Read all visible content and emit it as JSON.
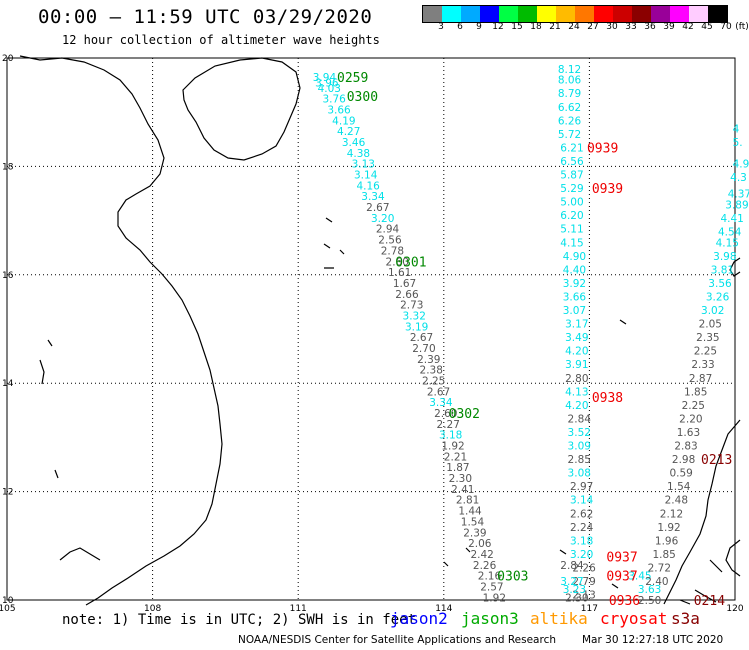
{
  "title": "00:00 – 11:59 UTC 03/29/2020",
  "subtitle": "12 hour collection of altimeter wave heights",
  "legend": {
    "unit": "(ft)",
    "labels": [
      "3",
      "6",
      "9",
      "12",
      "15",
      "18",
      "21",
      "24",
      "27",
      "30",
      "33",
      "36",
      "39",
      "42",
      "45",
      "70"
    ],
    "colors": [
      "#7f7f7f",
      "#00ffff",
      "#00aaff",
      "#0000ff",
      "#00ff44",
      "#00bb00",
      "#ffff00",
      "#ffbb00",
      "#ff7700",
      "#ff0000",
      "#cc0000",
      "#8b0000",
      "#990099",
      "#ff00ff",
      "#ffccff",
      "#000000"
    ]
  },
  "axes": {
    "lon_labels": [
      "105",
      "108",
      "111",
      "114",
      "117",
      "120"
    ],
    "lat_labels": [
      "20",
      "18",
      "16",
      "14",
      "12",
      "10"
    ]
  },
  "note": "note: 1) Time is in UTC; 2) SWH is in feet",
  "satellites": [
    {
      "name": "jason2",
      "color": "#0000ff"
    },
    {
      "name": "jason3",
      "color": "#00aa00"
    },
    {
      "name": "altika",
      "color": "#ff9900"
    },
    {
      "name": "cryosat",
      "color": "#ff0000"
    },
    {
      "name": "s3a",
      "color": "#880000"
    }
  ],
  "footer": "NOAA/NESDIS Center for Satellite Applications and Research",
  "footer_date": "Mar 30 12:27:18 UTC 2020",
  "colors": {
    "cyan": "#00e0e8",
    "gray": "#555555",
    "green": "#008800",
    "red": "#ee0000",
    "darkred": "#880000"
  },
  "tracks": [
    {
      "id": "t1",
      "time": "0259",
      "time_color": "green",
      "points": [
        {
          "lon": 111.3,
          "lat": 19.65,
          "v": "3.94",
          "c": "cyan"
        },
        {
          "lon": 111.35,
          "lat": 19.55,
          "v": "3.96",
          "c": "cyan"
        },
        {
          "lon": 111.4,
          "lat": 19.45,
          "v": "4.03",
          "c": "cyan"
        },
        {
          "lon": 111.5,
          "lat": 19.25,
          "v": "3.76",
          "c": "cyan"
        },
        {
          "lon": 111.6,
          "lat": 19.05,
          "v": "3.66",
          "c": "cyan"
        },
        {
          "lon": 111.7,
          "lat": 18.85,
          "v": "4.19",
          "c": "cyan"
        },
        {
          "lon": 111.8,
          "lat": 18.65,
          "v": "4.27",
          "c": "cyan"
        },
        {
          "lon": 111.9,
          "lat": 18.45,
          "v": "3.46",
          "c": "cyan"
        },
        {
          "lon": 112.0,
          "lat": 18.25,
          "v": "4.38",
          "c": "cyan"
        },
        {
          "lon": 112.1,
          "lat": 18.05,
          "v": "3.13",
          "c": "cyan"
        },
        {
          "lon": 112.15,
          "lat": 17.85,
          "v": "3.14",
          "c": "cyan"
        },
        {
          "lon": 112.2,
          "lat": 17.65,
          "v": "4.16",
          "c": "cyan"
        },
        {
          "lon": 112.3,
          "lat": 17.45,
          "v": "3.34",
          "c": "cyan"
        },
        {
          "lon": 112.4,
          "lat": 17.25,
          "v": "2.67",
          "c": "gray"
        },
        {
          "lon": 112.5,
          "lat": 17.05,
          "v": "3.20",
          "c": "cyan"
        },
        {
          "lon": 112.6,
          "lat": 16.85,
          "v": "2.94",
          "c": "gray"
        },
        {
          "lon": 112.65,
          "lat": 16.65,
          "v": "2.56",
          "c": "gray"
        },
        {
          "lon": 112.7,
          "lat": 16.45,
          "v": "2.78",
          "c": "gray"
        },
        {
          "lon": 112.8,
          "lat": 16.25,
          "v": "2.60",
          "c": "gray"
        },
        {
          "lon": 112.85,
          "lat": 16.05,
          "v": "1.61",
          "c": "gray"
        },
        {
          "lon": 112.95,
          "lat": 15.85,
          "v": "1.67",
          "c": "gray"
        },
        {
          "lon": 113.0,
          "lat": 15.65,
          "v": "2.66",
          "c": "gray"
        },
        {
          "lon": 113.1,
          "lat": 15.45,
          "v": "2.73",
          "c": "gray"
        },
        {
          "lon": 113.15,
          "lat": 15.25,
          "v": "3.32",
          "c": "cyan"
        },
        {
          "lon": 113.2,
          "lat": 15.05,
          "v": "3.19",
          "c": "cyan"
        },
        {
          "lon": 113.3,
          "lat": 14.85,
          "v": "2.67",
          "c": "gray"
        },
        {
          "lon": 113.35,
          "lat": 14.65,
          "v": "2.70",
          "c": "gray"
        },
        {
          "lon": 113.45,
          "lat": 14.45,
          "v": "2.39",
          "c": "gray"
        },
        {
          "lon": 113.5,
          "lat": 14.25,
          "v": "2.38",
          "c": "gray"
        },
        {
          "lon": 113.55,
          "lat": 14.05,
          "v": "2.25",
          "c": "gray"
        },
        {
          "lon": 113.65,
          "lat": 13.85,
          "v": "2.67",
          "c": "gray"
        },
        {
          "lon": 113.7,
          "lat": 13.65,
          "v": "3.34",
          "c": "cyan"
        },
        {
          "lon": 113.8,
          "lat": 13.45,
          "v": "2.60",
          "c": "gray"
        },
        {
          "lon": 113.85,
          "lat": 13.25,
          "v": "2.27",
          "c": "gray"
        },
        {
          "lon": 113.9,
          "lat": 13.05,
          "v": "3.18",
          "c": "cyan"
        },
        {
          "lon": 113.95,
          "lat": 12.85,
          "v": "1.92",
          "c": "gray"
        },
        {
          "lon": 114.0,
          "lat": 12.65,
          "v": "2.21",
          "c": "gray"
        },
        {
          "lon": 114.05,
          "lat": 12.45,
          "v": "1.87",
          "c": "gray"
        },
        {
          "lon": 114.1,
          "lat": 12.25,
          "v": "2.30",
          "c": "gray"
        },
        {
          "lon": 114.15,
          "lat": 12.05,
          "v": "2.41",
          "c": "gray"
        },
        {
          "lon": 114.25,
          "lat": 11.85,
          "v": "2.81",
          "c": "gray"
        },
        {
          "lon": 114.3,
          "lat": 11.65,
          "v": "1.44",
          "c": "gray"
        },
        {
          "lon": 114.35,
          "lat": 11.45,
          "v": "1.54",
          "c": "gray"
        },
        {
          "lon": 114.4,
          "lat": 11.25,
          "v": "2.39",
          "c": "gray"
        },
        {
          "lon": 114.5,
          "lat": 11.05,
          "v": "2.06",
          "c": "gray"
        },
        {
          "lon": 114.55,
          "lat": 10.85,
          "v": "2.42",
          "c": "gray"
        },
        {
          "lon": 114.6,
          "lat": 10.65,
          "v": "2.26",
          "c": "gray"
        },
        {
          "lon": 114.7,
          "lat": 10.45,
          "v": "2.16",
          "c": "gray"
        },
        {
          "lon": 114.75,
          "lat": 10.25,
          "v": "2.57",
          "c": "gray"
        },
        {
          "lon": 114.8,
          "lat": 10.05,
          "v": "1.92",
          "c": "gray"
        }
      ]
    },
    {
      "id": "t2",
      "time": "0939",
      "time_color": "red",
      "points": [
        {
          "lon": 116.35,
          "lat": 19.8,
          "v": "8.12",
          "c": "cyan"
        },
        {
          "lon": 116.35,
          "lat": 19.6,
          "v": "8.06",
          "c": "cyan"
        },
        {
          "lon": 116.35,
          "lat": 19.35,
          "v": "8.79",
          "c": "cyan"
        },
        {
          "lon": 116.35,
          "lat": 19.1,
          "v": "6.62",
          "c": "cyan"
        },
        {
          "lon": 116.35,
          "lat": 18.85,
          "v": "6.26",
          "c": "cyan"
        },
        {
          "lon": 116.35,
          "lat": 18.6,
          "v": "5.72",
          "c": "cyan"
        },
        {
          "lon": 116.4,
          "lat": 18.35,
          "v": "6.21",
          "c": "cyan"
        },
        {
          "lon": 116.4,
          "lat": 18.1,
          "v": "6.56",
          "c": "cyan"
        },
        {
          "lon": 116.4,
          "lat": 17.85,
          "v": "5.87",
          "c": "cyan"
        },
        {
          "lon": 116.4,
          "lat": 17.6,
          "v": "5.29",
          "c": "cyan"
        },
        {
          "lon": 116.4,
          "lat": 17.35,
          "v": "5.00",
          "c": "cyan"
        },
        {
          "lon": 116.4,
          "lat": 17.1,
          "v": "6.20",
          "c": "cyan"
        },
        {
          "lon": 116.4,
          "lat": 16.85,
          "v": "5.11",
          "c": "cyan"
        },
        {
          "lon": 116.4,
          "lat": 16.6,
          "v": "4.15",
          "c": "cyan"
        },
        {
          "lon": 116.45,
          "lat": 16.35,
          "v": "4.90",
          "c": "cyan"
        },
        {
          "lon": 116.45,
          "lat": 16.1,
          "v": "4.40",
          "c": "cyan"
        },
        {
          "lon": 116.45,
          "lat": 15.85,
          "v": "3.92",
          "c": "cyan"
        },
        {
          "lon": 116.45,
          "lat": 15.6,
          "v": "3.66",
          "c": "cyan"
        },
        {
          "lon": 116.45,
          "lat": 15.35,
          "v": "3.07",
          "c": "cyan"
        },
        {
          "lon": 116.5,
          "lat": 15.1,
          "v": "3.17",
          "c": "cyan"
        },
        {
          "lon": 116.5,
          "lat": 14.85,
          "v": "3.49",
          "c": "cyan"
        },
        {
          "lon": 116.5,
          "lat": 14.6,
          "v": "4.20",
          "c": "cyan"
        },
        {
          "lon": 116.5,
          "lat": 14.35,
          "v": "3.91",
          "c": "cyan"
        },
        {
          "lon": 116.5,
          "lat": 14.1,
          "v": "2.80",
          "c": "gray"
        },
        {
          "lon": 116.5,
          "lat": 13.85,
          "v": "4.13",
          "c": "cyan"
        },
        {
          "lon": 116.5,
          "lat": 13.6,
          "v": "4.20",
          "c": "cyan"
        }
      ]
    },
    {
      "id": "t3",
      "time": "0300",
      "time_color": "green",
      "points": []
    },
    {
      "id": "t4",
      "time": "0938",
      "time_color": "red",
      "points": [
        {
          "lon": 116.55,
          "lat": 13.35,
          "v": "2.84",
          "c": "gray"
        },
        {
          "lon": 116.55,
          "lat": 13.1,
          "v": "3.52",
          "c": "cyan"
        },
        {
          "lon": 116.55,
          "lat": 12.85,
          "v": "3.09",
          "c": "cyan"
        },
        {
          "lon": 116.55,
          "lat": 12.6,
          "v": "2.85",
          "c": "gray"
        },
        {
          "lon": 116.55,
          "lat": 12.35,
          "v": "3.08",
          "c": "cyan"
        },
        {
          "lon": 116.6,
          "lat": 12.1,
          "v": "2.97",
          "c": "gray"
        },
        {
          "lon": 116.6,
          "lat": 11.85,
          "v": "3.14",
          "c": "cyan"
        },
        {
          "lon": 116.6,
          "lat": 11.6,
          "v": "2.62",
          "c": "gray"
        },
        {
          "lon": 116.6,
          "lat": 11.35,
          "v": "2.24",
          "c": "gray"
        },
        {
          "lon": 116.6,
          "lat": 11.1,
          "v": "3.18",
          "c": "cyan"
        },
        {
          "lon": 116.6,
          "lat": 10.85,
          "v": "3.20",
          "c": "cyan"
        },
        {
          "lon": 116.65,
          "lat": 10.6,
          "v": "2.26",
          "c": "gray"
        },
        {
          "lon": 116.65,
          "lat": 10.35,
          "v": "2.79",
          "c": "gray"
        },
        {
          "lon": 116.65,
          "lat": 10.1,
          "v": "2.13",
          "c": "gray"
        }
      ]
    }
  ],
  "time_labels": [
    {
      "text": "0259",
      "lon": 111.8,
      "lat": 19.65,
      "c": "green"
    },
    {
      "text": "0300",
      "lon": 112.0,
      "lat": 19.3,
      "c": "green"
    },
    {
      "text": "0301",
      "lon": 113.0,
      "lat": 16.25,
      "c": "green"
    },
    {
      "text": "0302",
      "lon": 114.1,
      "lat": 13.45,
      "c": "green"
    },
    {
      "text": "0303",
      "lon": 115.1,
      "lat": 10.45,
      "c": "green"
    },
    {
      "text": "0939",
      "lon": 116.95,
      "lat": 18.35,
      "c": "red"
    },
    {
      "text": "0939",
      "lon": 117.05,
      "lat": 17.6,
      "c": "red"
    },
    {
      "text": "0938",
      "lon": 117.05,
      "lat": 13.75,
      "c": "red"
    },
    {
      "text": "0937",
      "lon": 117.35,
      "lat": 10.8,
      "c": "red"
    },
    {
      "text": "0937",
      "lon": 117.35,
      "lat": 10.45,
      "c": "red"
    },
    {
      "text": "0936",
      "lon": 117.4,
      "lat": 10.0,
      "c": "red"
    },
    {
      "text": "0213",
      "lon": 119.3,
      "lat": 12.6,
      "c": "darkred"
    },
    {
      "text": "0214",
      "lon": 119.15,
      "lat": 10.0,
      "c": "darkred"
    }
  ],
  "extra_values": [
    {
      "lon": 116.4,
      "lat": 10.65,
      "v": "2.84",
      "c": "gray"
    },
    {
      "lon": 116.4,
      "lat": 10.35,
      "v": "3.27",
      "c": "cyan"
    },
    {
      "lon": 116.45,
      "lat": 10.2,
      "v": "3.23",
      "c": "cyan"
    },
    {
      "lon": 116.5,
      "lat": 10.05,
      "v": "2.30",
      "c": "gray"
    },
    {
      "lon": 117.8,
      "lat": 10.45,
      "v": "3.45",
      "c": "cyan"
    },
    {
      "lon": 118.0,
      "lat": 10.2,
      "v": "3.63",
      "c": "cyan"
    },
    {
      "lon": 118.0,
      "lat": 10.0,
      "v": "2.50",
      "c": "gray"
    },
    {
      "lon": 119.95,
      "lat": 18.7,
      "v": "4",
      "c": "cyan"
    },
    {
      "lon": 119.95,
      "lat": 18.45,
      "v": "5.",
      "c": "cyan"
    },
    {
      "lon": 119.95,
      "lat": 18.05,
      "v": "4.9",
      "c": "cyan"
    },
    {
      "lon": 119.9,
      "lat": 17.8,
      "v": "4.3",
      "c": "cyan"
    },
    {
      "lon": 119.85,
      "lat": 17.5,
      "v": "4.37",
      "c": "cyan"
    },
    {
      "lon": 119.8,
      "lat": 17.3,
      "v": "3.89",
      "c": "cyan"
    },
    {
      "lon": 119.7,
      "lat": 17.05,
      "v": "4.41",
      "c": "cyan"
    },
    {
      "lon": 119.65,
      "lat": 16.8,
      "v": "4.54",
      "c": "cyan"
    },
    {
      "lon": 119.6,
      "lat": 16.6,
      "v": "4.15",
      "c": "cyan"
    },
    {
      "lon": 119.55,
      "lat": 16.35,
      "v": "3.98",
      "c": "cyan"
    },
    {
      "lon": 119.5,
      "lat": 16.1,
      "v": "3.81",
      "c": "cyan"
    },
    {
      "lon": 119.45,
      "lat": 15.85,
      "v": "3.56",
      "c": "cyan"
    },
    {
      "lon": 119.4,
      "lat": 15.6,
      "v": "3.26",
      "c": "cyan"
    },
    {
      "lon": 119.3,
      "lat": 15.35,
      "v": "3.02",
      "c": "cyan"
    },
    {
      "lon": 119.25,
      "lat": 15.1,
      "v": "2.05",
      "c": "gray"
    },
    {
      "lon": 119.2,
      "lat": 14.85,
      "v": "2.35",
      "c": "gray"
    },
    {
      "lon": 119.15,
      "lat": 14.6,
      "v": "2.25",
      "c": "gray"
    },
    {
      "lon": 119.1,
      "lat": 14.35,
      "v": "2.33",
      "c": "gray"
    },
    {
      "lon": 119.05,
      "lat": 14.1,
      "v": "2.87",
      "c": "gray"
    },
    {
      "lon": 118.95,
      "lat": 13.85,
      "v": "1.85",
      "c": "gray"
    },
    {
      "lon": 118.9,
      "lat": 13.6,
      "v": "2.25",
      "c": "gray"
    },
    {
      "lon": 118.85,
      "lat": 13.35,
      "v": "2.20",
      "c": "gray"
    },
    {
      "lon": 118.8,
      "lat": 13.1,
      "v": "1.63",
      "c": "gray"
    },
    {
      "lon": 118.75,
      "lat": 12.85,
      "v": "2.83",
      "c": "gray"
    },
    {
      "lon": 118.7,
      "lat": 12.6,
      "v": "2.98",
      "c": "gray"
    },
    {
      "lon": 118.65,
      "lat": 12.35,
      "v": "0.59",
      "c": "gray"
    },
    {
      "lon": 118.6,
      "lat": 12.1,
      "v": "1.54",
      "c": "gray"
    },
    {
      "lon": 118.55,
      "lat": 11.85,
      "v": "2.48",
      "c": "gray"
    },
    {
      "lon": 118.45,
      "lat": 11.6,
      "v": "2.12",
      "c": "gray"
    },
    {
      "lon": 118.4,
      "lat": 11.35,
      "v": "1.92",
      "c": "gray"
    },
    {
      "lon": 118.35,
      "lat": 11.1,
      "v": "1.96",
      "c": "gray"
    },
    {
      "lon": 118.3,
      "lat": 10.85,
      "v": "1.85",
      "c": "gray"
    },
    {
      "lon": 118.2,
      "lat": 10.6,
      "v": "2.72",
      "c": "gray"
    },
    {
      "lon": 118.15,
      "lat": 10.35,
      "v": "2.40",
      "c": "gray"
    }
  ]
}
